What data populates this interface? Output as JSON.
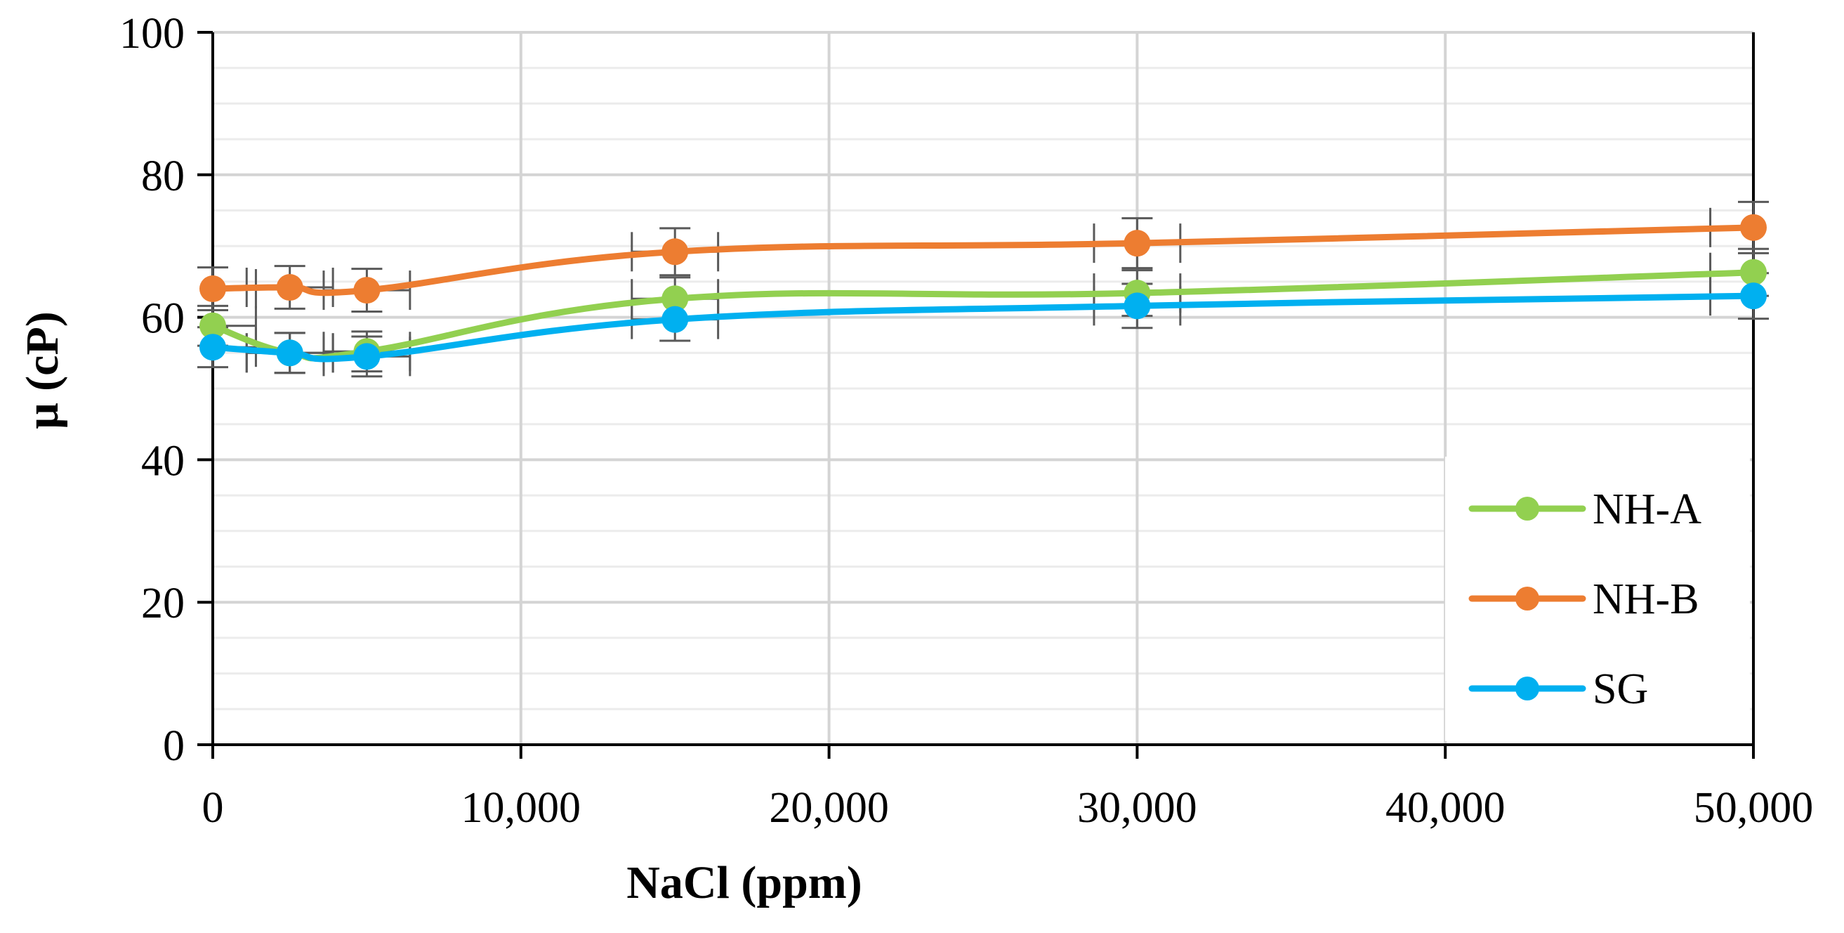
{
  "chart_data": {
    "type": "line",
    "title": "",
    "xlabel": "NaCl (ppm)",
    "ylabel": "μ (cP)",
    "xlim": [
      0,
      50000
    ],
    "ylim": [
      0,
      100
    ],
    "x_ticks": [
      0,
      10000,
      20000,
      30000,
      40000,
      50000
    ],
    "x_tick_labels": [
      "0",
      "10,000",
      "20,000",
      "30,000",
      "40,000",
      "50,000"
    ],
    "y_ticks": [
      0,
      20,
      40,
      60,
      80,
      100
    ],
    "y_tick_labels": [
      "0",
      "20",
      "40",
      "60",
      "80",
      "100"
    ],
    "y_minor_step": 5,
    "grid": true,
    "legend_position": "bottom-right",
    "x": [
      0,
      2500,
      5000,
      15000,
      30000,
      50000
    ],
    "series": [
      {
        "name": "NH-A",
        "color": "#92d050",
        "values": [
          58.8,
          55.0,
          55.2,
          62.6,
          63.4,
          66.3
        ],
        "errors": [
          2.8,
          2.8,
          2.8,
          3.0,
          3.2,
          3.3
        ]
      },
      {
        "name": "NH-B",
        "color": "#ed7d31",
        "values": [
          64.0,
          64.2,
          63.8,
          69.2,
          70.4,
          72.6
        ],
        "errors": [
          3.0,
          3.0,
          3.0,
          3.3,
          3.5,
          3.6
        ]
      },
      {
        "name": "SG",
        "color": "#00b0f0",
        "values": [
          55.8,
          55.0,
          54.5,
          59.7,
          61.6,
          63.0
        ],
        "errors": [
          2.8,
          2.8,
          2.8,
          3.0,
          3.1,
          3.2
        ]
      }
    ]
  }
}
